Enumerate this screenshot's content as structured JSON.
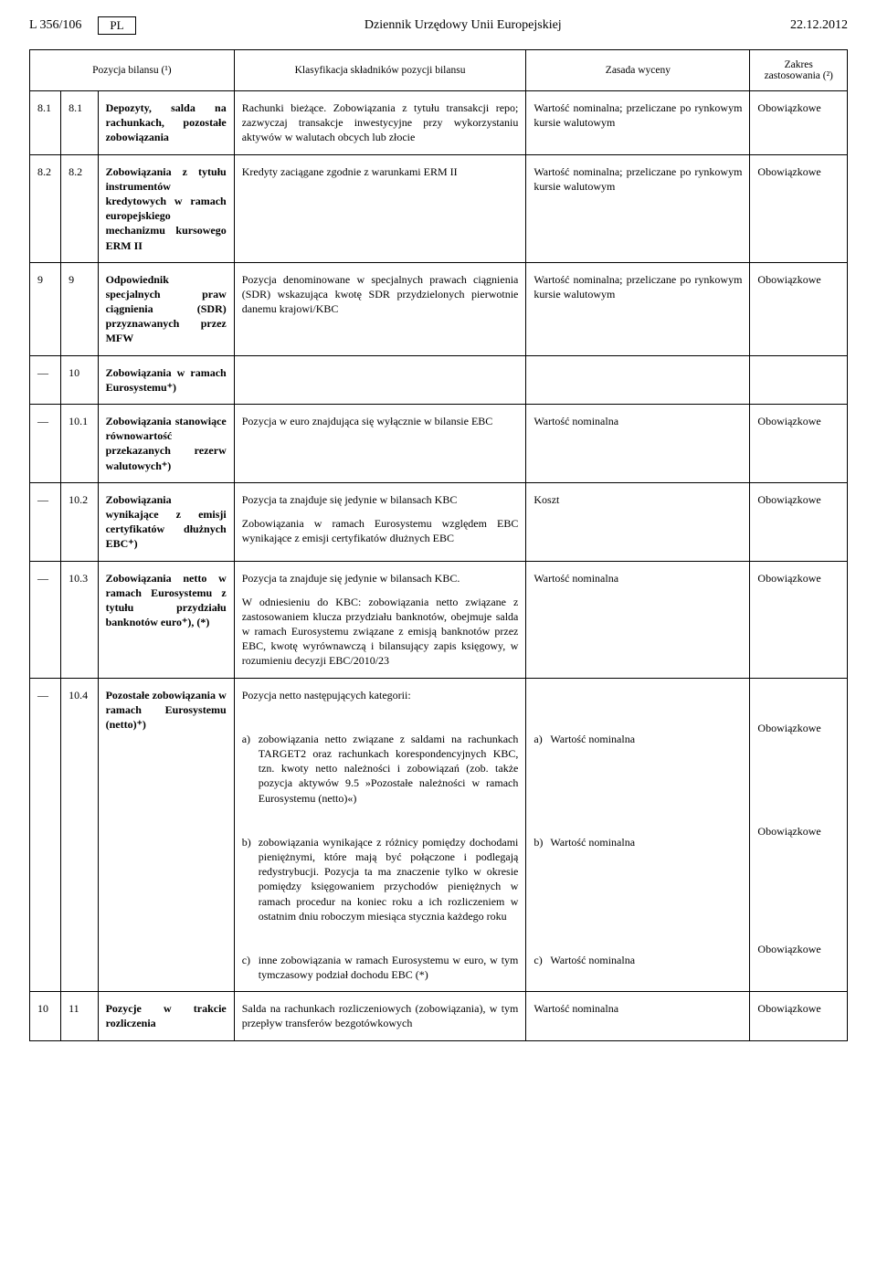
{
  "header": {
    "page_ref": "L 356/106",
    "lang": "PL",
    "journal": "Dziennik Urzędowy Unii Europejskiej",
    "date": "22.12.2012"
  },
  "table": {
    "headers": {
      "col1": "Pozycja bilansu (¹)",
      "col2": "Klasyfikacja składników pozycji bilansu",
      "col3": "Zasada wyceny",
      "col4": "Zakres zastosowania (²)"
    },
    "rows": [
      {
        "n1": "8.1",
        "n2": "8.1",
        "title": "Depozyty, salda na rachunkach, pozostałe zobowiązania",
        "klas": "Rachunki bieżące. Zobowiązania z tytułu transakcji repo; zazwyczaj transakcje inwestycyjne przy wykorzystaniu aktywów w walutach obcych lub złocie",
        "zas": "Wartość nominalna; przeliczane po rynkowym kursie walutowym",
        "zakr": "Obowiązkowe"
      },
      {
        "n1": "8.2",
        "n2": "8.2",
        "title": "Zobowiązania z tytułu instrumentów kredytowych w ramach europejskiego mechanizmu kursowego ERM II",
        "klas": "Kredyty zaciągane zgodnie z warunkami ERM II",
        "zas": "Wartość nominalna; przeliczane po rynkowym kursie walutowym",
        "zakr": "Obowiązkowe"
      },
      {
        "n1": "9",
        "n2": "9",
        "title": "Odpowiednik specjalnych praw ciągnienia (SDR) przyznawanych przez MFW",
        "klas": "Pozycja denominowane w specjalnych prawach ciągnienia (SDR) wskazująca kwotę SDR przydzielonych pierwotnie danemu krajowi/KBC",
        "zas": "Wartość nominalna; przeliczane po rynkowym kursie walutowym",
        "zakr": "Obowiązkowe"
      },
      {
        "n1": "—",
        "n2": "10",
        "title": "Zobowiązania w ramach Eurosystemu⁺)",
        "klas": "",
        "zas": "",
        "zakr": ""
      },
      {
        "n1": "—",
        "n2": "10.1",
        "title": "Zobowiązania stanowiące równowartość przekazanych rezerw walutowych⁺)",
        "klas": "Pozycja w euro znajdująca się wyłącznie w bilansie EBC",
        "zas": "Wartość nominalna",
        "zakr": "Obowiązkowe"
      },
      {
        "n1": "—",
        "n2": "10.2",
        "title": "Zobowiązania wynikające z emisji certyfikatów dłużnych EBC⁺)",
        "klas": "Pozycja ta znajduje się jedynie w bilansach KBC\nZobowiązania w ramach Eurosystemu względem EBC wynikające z emisji certyfikatów dłużnych EBC",
        "zas": "Koszt",
        "zakr": "Obowiązkowe"
      },
      {
        "n1": "—",
        "n2": "10.3",
        "title": "Zobowiązania netto w ramach Eurosystemu z tytułu przydziału banknotów euro⁺), (*)",
        "klas": "Pozycja ta znajduje się jedynie w bilansach KBC.\nW odniesieniu do KBC: zobowiązania netto związane z zastosowaniem klucza przydziału banknotów, obejmuje salda w ramach Eurosystemu związane z emisją banknotów przez EBC, kwotę wyrównawczą i bilansujący zapis księgowy, w rozumieniu decyzji EBC/2010/23",
        "zas": "Wartość nominalna",
        "zakr": "Obowiązkowe"
      },
      {
        "n1": "—",
        "n2": "10.4",
        "title": "Pozostałe zobowiązania w ramach Eurosystemu (netto)⁺)",
        "klas_intro": "Pozycja netto następujących kategorii:",
        "klas_items": [
          {
            "l": "a)",
            "t": "zobowiązania netto związane z saldami na rachunkach TARGET2 oraz rachunkach korespondencyjnych KBC, tzn. kwoty netto należności i zobowiązań (zob. także pozycja aktywów 9.5 »Pozostałe należności w ramach Eurosystemu (netto)«)"
          },
          {
            "l": "b)",
            "t": "zobowiązania wynikające z różnicy pomiędzy dochodami pieniężnymi, które mają być połączone i podlegają redystrybucji. Pozycja ta ma znaczenie tylko w okresie pomiędzy księgowaniem przychodów pieniężnych w ramach procedur na koniec roku a ich rozliczeniem w ostatnim dniu roboczym miesiąca stycznia każdego roku"
          },
          {
            "l": "c)",
            "t": "inne zobowiązania w ramach Eurosystemu w euro, w tym tymczasowy podział dochodu EBC (*)"
          }
        ],
        "zas_items": [
          {
            "l": "a)",
            "t": "Wartość nominalna"
          },
          {
            "l": "b)",
            "t": "Wartość nominalna"
          },
          {
            "l": "c)",
            "t": "Wartość nominalna"
          }
        ],
        "zakr_items": [
          "Obowiązkowe",
          "Obowiązkowe",
          "Obowiązkowe"
        ]
      },
      {
        "n1": "10",
        "n2": "11",
        "title": "Pozycje w trakcie rozliczenia",
        "klas": "Salda na rachunkach rozliczeniowych (zobowiązania), w tym przepływ transferów bezgotówkowych",
        "zas": "Wartość nominalna",
        "zakr": "Obowiązkowe"
      }
    ]
  }
}
